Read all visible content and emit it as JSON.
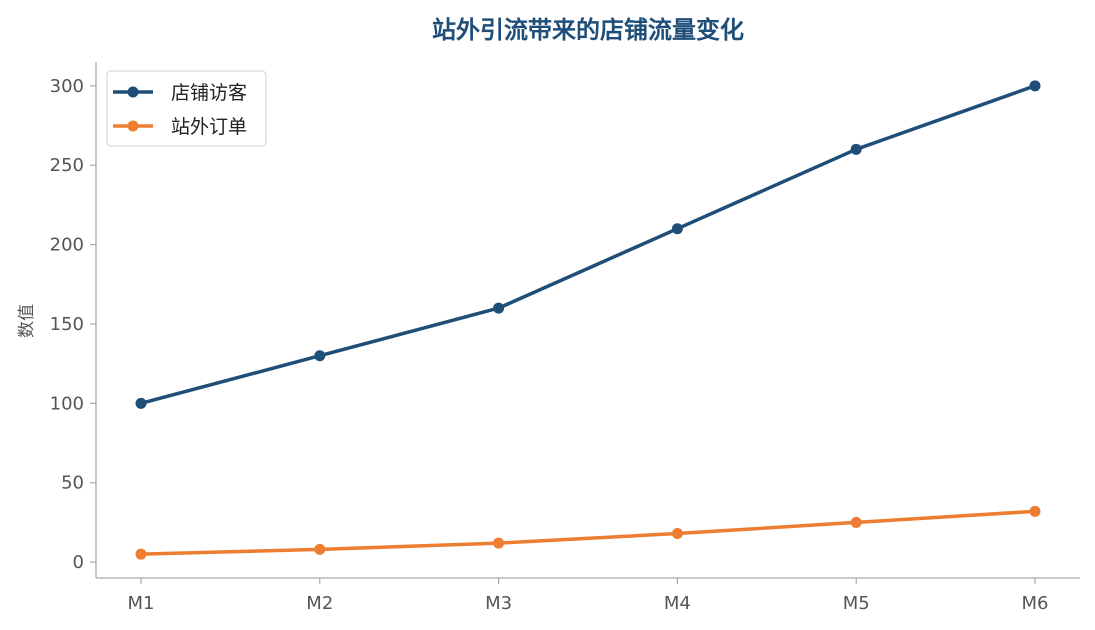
{
  "chart_data": {
    "type": "line",
    "title": "站外引流带来的店铺流量变化",
    "xlabel": "",
    "ylabel": "数值",
    "categories": [
      "M1",
      "M2",
      "M3",
      "M4",
      "M5",
      "M6"
    ],
    "ylim": [
      -10,
      315
    ],
    "yticks": [
      0,
      50,
      100,
      150,
      200,
      250,
      300
    ],
    "grid": false,
    "legend_position": "top-left",
    "series": [
      {
        "name": "店铺访客",
        "color": "#1f4e79",
        "values": [
          100,
          130,
          160,
          210,
          260,
          300
        ]
      },
      {
        "name": "站外订单",
        "color": "#ed7d31",
        "values": [
          5,
          8,
          12,
          18,
          25,
          32
        ]
      }
    ]
  }
}
